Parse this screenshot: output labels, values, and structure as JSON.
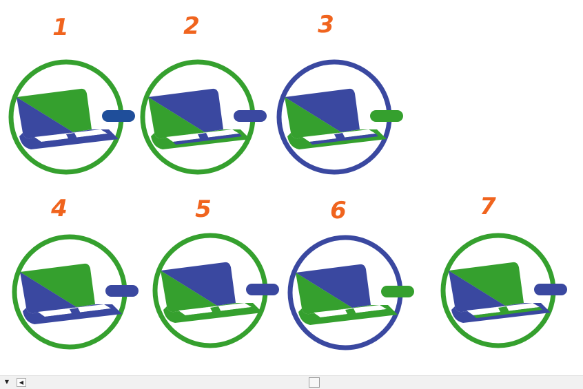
{
  "colors": {
    "green": "#35a02e",
    "blue": "#3a48a0",
    "dark_blue": "#1f4e9a",
    "number_orange": "#f0641e",
    "white": "#ffffff"
  },
  "variants": [
    {
      "label": "1",
      "ring": "green",
      "base": "blue",
      "top": "green",
      "keyboard": "blue",
      "tab": "dark_blue"
    },
    {
      "label": "2",
      "ring": "green",
      "base": "green",
      "top": "blue",
      "keyboard": "blue",
      "tab": "blue"
    },
    {
      "label": "3",
      "ring": "blue",
      "base": "green",
      "top": "blue",
      "keyboard": "blue",
      "tab": "green"
    },
    {
      "label": "4",
      "ring": "green",
      "base": "blue",
      "top": "green",
      "keyboard": "blue",
      "tab": "blue"
    },
    {
      "label": "5",
      "ring": "green",
      "base": "green",
      "top": "blue",
      "keyboard": "green",
      "tab": "blue"
    },
    {
      "label": "6",
      "ring": "blue",
      "base": "green",
      "top": "blue",
      "keyboard": "green",
      "tab": "green"
    },
    {
      "label": "7",
      "ring": "green",
      "base": "blue",
      "top": "green",
      "keyboard": "green",
      "tab": "blue"
    }
  ],
  "scrollbar": {
    "dropdown_icon": "triangle-down-icon",
    "left_icon": "triangle-left-icon",
    "dropdown_glyph": "▼",
    "left_glyph": "◀"
  }
}
